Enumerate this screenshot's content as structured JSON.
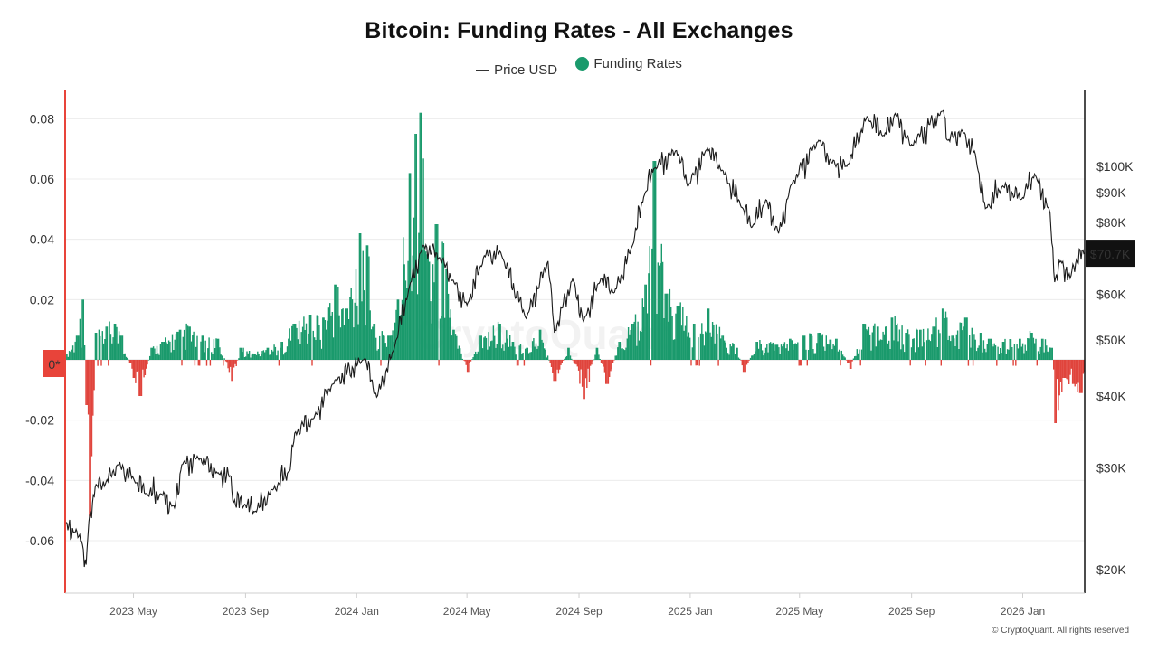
{
  "title": "Bitcoin: Funding Rates - All Exchanges",
  "legend": {
    "price_label": "Price USD",
    "funding_label": "Funding Rates"
  },
  "copyright": "© CryptoQuant. All rights reserved",
  "watermark": "CryptoQuant",
  "colors": {
    "positive": "#1a9a6c",
    "negative": "#e0443c",
    "price": "#1a1a1a",
    "grid": "#ececec",
    "zero_marker": "#e8443a",
    "current_badge": "#111111",
    "legend_dot": "#1a9a6c"
  },
  "zero_marker_label": "0*",
  "current_price_label": "$70.7K",
  "chart_data": {
    "type": "bar+line",
    "title": "Bitcoin: Funding Rates - All Exchanges",
    "x_ticks": [
      "2023 May",
      "2023 Sep",
      "2024 Jan",
      "2024 May",
      "2024 Sep",
      "2025 Jan",
      "2025 May",
      "2025 Sep",
      "2026 Jan"
    ],
    "x_range": [
      "2023-02-15",
      "2026-03-10"
    ],
    "y_left": {
      "ticks": [
        "0.08",
        "0.06",
        "0.04",
        "0.02",
        "-0.02",
        "-0.04",
        "-0.06"
      ],
      "tick_values": [
        0.08,
        0.06,
        0.04,
        0.02,
        -0.02,
        -0.04,
        -0.06
      ],
      "range": [
        -0.077,
        0.09
      ]
    },
    "y_right": {
      "scale": "log",
      "ticks": [
        "$100K",
        "$90K",
        "$80K",
        "$70.7K",
        "$60K",
        "$50K",
        "$40K",
        "$30K",
        "$20K"
      ],
      "tick_values": [
        100000,
        90000,
        80000,
        70700,
        60000,
        50000,
        40000,
        30000,
        20000
      ],
      "range": [
        17500,
        165000
      ]
    },
    "series": [
      {
        "name": "Price USD",
        "type": "line",
        "points": [
          [
            "2023-02-15",
            24000
          ],
          [
            "2023-02-25",
            23200
          ],
          [
            "2023-03-05",
            22400
          ],
          [
            "2023-03-10",
            20400
          ],
          [
            "2023-03-13",
            24200
          ],
          [
            "2023-03-20",
            27800
          ],
          [
            "2023-04-01",
            28400
          ],
          [
            "2023-04-14",
            30400
          ],
          [
            "2023-05-01",
            28800
          ],
          [
            "2023-05-15",
            27100
          ],
          [
            "2023-06-01",
            27000
          ],
          [
            "2023-06-15",
            25600
          ],
          [
            "2023-06-23",
            30400
          ],
          [
            "2023-07-13",
            31200
          ],
          [
            "2023-08-01",
            29400
          ],
          [
            "2023-08-16",
            29000
          ],
          [
            "2023-08-18",
            26300
          ],
          [
            "2023-09-01",
            25900
          ],
          [
            "2023-09-11",
            25200
          ],
          [
            "2023-10-01",
            27500
          ],
          [
            "2023-10-20",
            29800
          ],
          [
            "2023-10-25",
            34500
          ],
          [
            "2023-11-15",
            36600
          ],
          [
            "2023-12-05",
            41900
          ],
          [
            "2024-01-10",
            46500
          ],
          [
            "2024-01-23",
            39800
          ],
          [
            "2024-02-10",
            47800
          ],
          [
            "2024-02-28",
            62000
          ],
          [
            "2024-03-14",
            73000
          ],
          [
            "2024-04-01",
            69500
          ],
          [
            "2024-04-15",
            63500
          ],
          [
            "2024-05-01",
            57500
          ],
          [
            "2024-05-20",
            70000
          ],
          [
            "2024-06-07",
            71000
          ],
          [
            "2024-07-05",
            54500
          ],
          [
            "2024-07-29",
            68500
          ],
          [
            "2024-08-05",
            51500
          ],
          [
            "2024-08-25",
            63800
          ],
          [
            "2024-09-06",
            53800
          ],
          [
            "2024-09-25",
            64000
          ],
          [
            "2024-10-10",
            60500
          ],
          [
            "2024-10-29",
            72500
          ],
          [
            "2024-11-11",
            88500
          ],
          [
            "2024-11-22",
            99000
          ],
          [
            "2024-12-17",
            106500
          ],
          [
            "2024-12-30",
            92500
          ],
          [
            "2025-01-20",
            107500
          ],
          [
            "2025-02-05",
            98500
          ],
          [
            "2025-02-28",
            84500
          ],
          [
            "2025-03-10",
            78500
          ],
          [
            "2025-03-25",
            87500
          ],
          [
            "2025-04-08",
            76500
          ],
          [
            "2025-04-22",
            93000
          ],
          [
            "2025-05-22",
            111000
          ],
          [
            "2025-06-05",
            101500
          ],
          [
            "2025-06-22",
            100000
          ],
          [
            "2025-07-14",
            122000
          ],
          [
            "2025-08-02",
            113000
          ],
          [
            "2025-08-14",
            123500
          ],
          [
            "2025-08-31",
            108500
          ],
          [
            "2025-10-06",
            125000
          ],
          [
            "2025-10-11",
            111000
          ],
          [
            "2025-10-27",
            115000
          ],
          [
            "2025-11-10",
            105000
          ],
          [
            "2025-11-21",
            84500
          ],
          [
            "2025-12-10",
            92500
          ],
          [
            "2025-12-31",
            87800
          ],
          [
            "2026-01-14",
            97000
          ],
          [
            "2026-01-31",
            83000
          ],
          [
            "2026-02-05",
            63000
          ],
          [
            "2026-02-12",
            68500
          ],
          [
            "2026-02-22",
            64000
          ],
          [
            "2026-03-01",
            69000
          ],
          [
            "2026-03-10",
            70700
          ]
        ]
      },
      {
        "name": "Funding Rates",
        "type": "bar",
        "points": [
          [
            "2023-02-15",
            0.002
          ],
          [
            "2023-02-28",
            0.008
          ],
          [
            "2023-03-06",
            0.02
          ],
          [
            "2023-03-10",
            -0.015
          ],
          [
            "2023-03-14",
            -0.052
          ],
          [
            "2023-03-20",
            0.009
          ],
          [
            "2023-04-01",
            0.011
          ],
          [
            "2023-04-10",
            0.012
          ],
          [
            "2023-04-17",
            0.008
          ],
          [
            "2023-05-01",
            -0.006
          ],
          [
            "2023-05-08",
            -0.012
          ],
          [
            "2023-05-20",
            0.004
          ],
          [
            "2023-06-01",
            0.006
          ],
          [
            "2023-06-20",
            0.01
          ],
          [
            "2023-07-01",
            0.011
          ],
          [
            "2023-07-15",
            0.008
          ],
          [
            "2023-08-01",
            0.007
          ],
          [
            "2023-08-17",
            -0.007
          ],
          [
            "2023-08-26",
            0.004
          ],
          [
            "2023-09-10",
            0.002
          ],
          [
            "2023-09-25",
            0.004
          ],
          [
            "2023-10-10",
            0.006
          ],
          [
            "2023-10-24",
            0.012
          ],
          [
            "2023-11-10",
            0.015
          ],
          [
            "2023-11-25",
            0.014
          ],
          [
            "2023-12-08",
            0.025
          ],
          [
            "2023-12-20",
            0.017
          ],
          [
            "2024-01-04",
            0.042
          ],
          [
            "2024-01-12",
            0.038
          ],
          [
            "2024-01-20",
            0.012
          ],
          [
            "2024-02-05",
            0.008
          ],
          [
            "2024-02-15",
            0.02
          ],
          [
            "2024-02-28",
            0.062
          ],
          [
            "2024-03-05",
            0.075
          ],
          [
            "2024-03-10",
            0.082
          ],
          [
            "2024-03-18",
            0.035
          ],
          [
            "2024-03-28",
            0.045
          ],
          [
            "2024-04-08",
            0.03
          ],
          [
            "2024-04-16",
            0.01
          ],
          [
            "2024-05-01",
            -0.004
          ],
          [
            "2024-05-15",
            0.008
          ],
          [
            "2024-06-05",
            0.012
          ],
          [
            "2024-06-20",
            0.006
          ],
          [
            "2024-07-05",
            0.004
          ],
          [
            "2024-07-20",
            0.01
          ],
          [
            "2024-08-05",
            -0.007
          ],
          [
            "2024-08-20",
            0.004
          ],
          [
            "2024-09-06",
            -0.013
          ],
          [
            "2024-09-20",
            0.004
          ],
          [
            "2024-10-01",
            -0.008
          ],
          [
            "2024-10-15",
            0.006
          ],
          [
            "2024-10-29",
            0.012
          ],
          [
            "2024-11-12",
            0.025
          ],
          [
            "2024-11-22",
            0.066
          ],
          [
            "2024-12-05",
            0.022
          ],
          [
            "2024-12-18",
            0.018
          ],
          [
            "2025-01-05",
            0.012
          ],
          [
            "2025-01-20",
            0.017
          ],
          [
            "2025-02-05",
            0.008
          ],
          [
            "2025-02-20",
            0.004
          ],
          [
            "2025-03-01",
            -0.004
          ],
          [
            "2025-03-15",
            0.006
          ],
          [
            "2025-04-05",
            0.005
          ],
          [
            "2025-04-20",
            0.007
          ],
          [
            "2025-05-05",
            0.008
          ],
          [
            "2025-05-22",
            0.009
          ],
          [
            "2025-06-10",
            0.007
          ],
          [
            "2025-06-25",
            -0.003
          ],
          [
            "2025-07-10",
            0.012
          ],
          [
            "2025-07-25",
            0.011
          ],
          [
            "2025-08-10",
            0.014
          ],
          [
            "2025-08-25",
            0.009
          ],
          [
            "2025-09-10",
            0.01
          ],
          [
            "2025-09-25",
            0.011
          ],
          [
            "2025-10-05",
            0.017
          ],
          [
            "2025-10-15",
            0.008
          ],
          [
            "2025-10-30",
            0.014
          ],
          [
            "2025-11-15",
            0.009
          ],
          [
            "2025-11-25",
            0.007
          ],
          [
            "2025-12-10",
            0.006
          ],
          [
            "2025-12-28",
            0.007
          ],
          [
            "2026-01-10",
            0.009
          ],
          [
            "2026-01-22",
            0.007
          ],
          [
            "2026-02-01",
            0.004
          ],
          [
            "2026-02-05",
            -0.021
          ],
          [
            "2026-02-15",
            -0.006
          ],
          [
            "2026-02-25",
            -0.008
          ],
          [
            "2026-03-05",
            -0.011
          ],
          [
            "2026-03-10",
            -0.004
          ]
        ]
      }
    ]
  }
}
